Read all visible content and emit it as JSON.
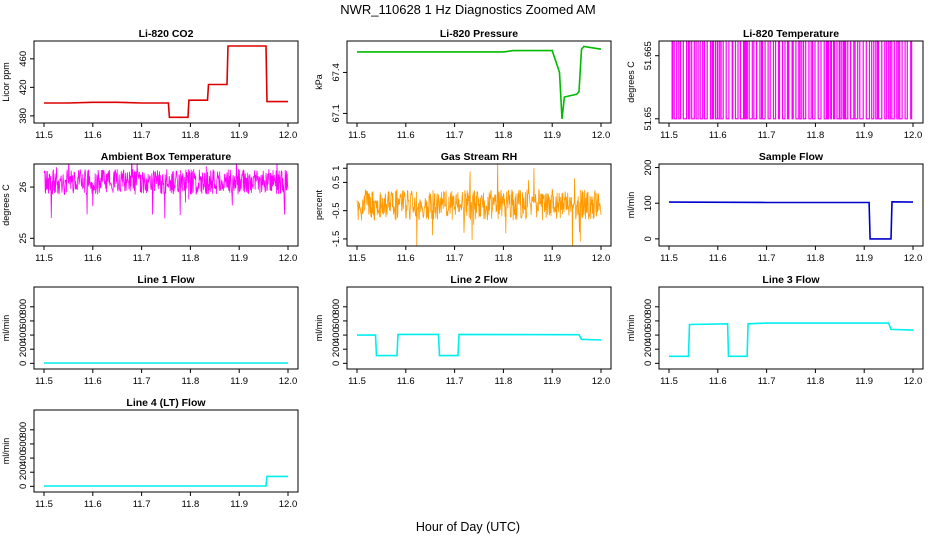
{
  "figure": {
    "title": "NWR_110628  1 Hz Diagnostics Zoomed AM",
    "xlabel": "Hour of Day (UTC)"
  },
  "chart_data": [
    {
      "type": "line",
      "title": "Li-820 CO2",
      "ylabel": "Licor ppm",
      "xlim": [
        11.5,
        12.0
      ],
      "ylim": [
        370,
        485
      ],
      "xticks": [
        "11.5",
        "11.6",
        "11.7",
        "11.8",
        "11.9",
        "12.0"
      ],
      "yticks": [
        380,
        420,
        460
      ],
      "color": "#dd0000",
      "series": [
        {
          "x": [
            11.5,
            11.55,
            11.6,
            11.65,
            11.7,
            11.755,
            11.757,
            11.795,
            11.797,
            11.835,
            11.837,
            11.875,
            11.877,
            11.955,
            11.957,
            12.0
          ],
          "y": [
            398,
            398,
            399,
            399,
            398,
            398,
            378,
            378,
            402,
            402,
            424,
            424,
            478,
            478,
            400,
            400
          ]
        }
      ]
    },
    {
      "type": "line",
      "title": "Li-820 Pressure",
      "ylabel": "kPa",
      "xlim": [
        11.5,
        12.0
      ],
      "ylim": [
        67.03,
        67.63
      ],
      "xticks": [
        "11.5",
        "11.6",
        "11.7",
        "11.8",
        "11.9",
        "12.0"
      ],
      "yticks": [
        67.1,
        67.4
      ],
      "color": "#00bb00",
      "series": [
        {
          "x": [
            11.5,
            11.6,
            11.7,
            11.8,
            11.82,
            11.9,
            11.915,
            11.92,
            11.925,
            11.95,
            11.955,
            11.96,
            11.965,
            12.0
          ],
          "y": [
            67.55,
            67.55,
            67.55,
            67.55,
            67.56,
            67.56,
            67.4,
            67.06,
            67.22,
            67.24,
            67.26,
            67.57,
            67.59,
            67.57
          ]
        }
      ]
    },
    {
      "type": "line",
      "title": "Li-820 Temperature",
      "ylabel": "degrees C",
      "xlim": [
        11.5,
        12.0
      ],
      "ylim": [
        51.649,
        51.6685
      ],
      "xticks": [
        "11.5",
        "11.6",
        "11.7",
        "11.8",
        "11.9",
        "12.0"
      ],
      "yticks": [
        51.65,
        51.665
      ],
      "color": "#ff00ff",
      "pattern": "binary-toggle",
      "low": 51.65,
      "high": 51.67
    },
    {
      "type": "line",
      "title": "Ambient Box Temperature",
      "ylabel": "degrees C",
      "xlim": [
        11.5,
        12.0
      ],
      "ylim": [
        24.85,
        26.45
      ],
      "xticks": [
        "11.5",
        "11.6",
        "11.7",
        "11.8",
        "11.9",
        "12.0"
      ],
      "yticks": [
        25.0,
        26.0
      ],
      "color": "#ff00ff",
      "pattern": "noise",
      "mean": 26.1,
      "spread": 0.25
    },
    {
      "type": "line",
      "title": "Gas Stream RH",
      "ylabel": "percent",
      "xlim": [
        11.5,
        12.0
      ],
      "ylim": [
        -1.75,
        1.15
      ],
      "xticks": [
        "11.5",
        "11.6",
        "11.7",
        "11.8",
        "11.9",
        "12.0"
      ],
      "yticks": [
        -1.5,
        -0.5,
        0.5,
        1.0
      ],
      "color": "#ff9900",
      "pattern": "noise",
      "mean": -0.3,
      "spread": 0.55
    },
    {
      "type": "line",
      "title": "Sample Flow",
      "ylabel": "ml/min",
      "xlim": [
        11.5,
        12.0
      ],
      "ylim": [
        -20,
        210
      ],
      "xticks": [
        "11.5",
        "11.6",
        "11.7",
        "11.8",
        "11.9",
        "12.0"
      ],
      "yticks": [
        0,
        100,
        200
      ],
      "color": "#0000cc",
      "series": [
        {
          "x": [
            11.5,
            11.7,
            11.91,
            11.912,
            11.955,
            11.957,
            12.0
          ],
          "y": [
            103,
            102,
            102,
            0,
            0,
            104,
            103
          ]
        }
      ]
    },
    {
      "type": "line",
      "title": "Line 1 Flow",
      "ylabel": "ml/min",
      "xlim": [
        11.5,
        12.0
      ],
      "ylim": [
        -80,
        1080
      ],
      "xticks": [
        "11.5",
        "11.6",
        "11.7",
        "11.8",
        "11.9",
        "12.0"
      ],
      "yticks": [
        0,
        200,
        400,
        600,
        800
      ],
      "color": "#00eeee",
      "series": [
        {
          "x": [
            11.5,
            12.0
          ],
          "y": [
            5,
            5
          ]
        }
      ]
    },
    {
      "type": "line",
      "title": "Line 2 Flow",
      "ylabel": "ml/min",
      "xlim": [
        11.5,
        12.0
      ],
      "ylim": [
        -80,
        1080
      ],
      "xticks": [
        "11.5",
        "11.6",
        "11.7",
        "11.8",
        "11.9",
        "12.0"
      ],
      "yticks": [
        0,
        200,
        400,
        600,
        800
      ],
      "color": "#00eeee",
      "series": [
        {
          "x": [
            11.5,
            11.538,
            11.54,
            11.582,
            11.584,
            11.667,
            11.669,
            11.707,
            11.709,
            11.955,
            11.96,
            12.0
          ],
          "y": [
            400,
            400,
            110,
            110,
            410,
            410,
            110,
            110,
            410,
            405,
            340,
            330
          ]
        }
      ]
    },
    {
      "type": "line",
      "title": "Line 3 Flow",
      "ylabel": "ml/min",
      "xlim": [
        11.5,
        12.0
      ],
      "ylim": [
        -80,
        1080
      ],
      "xticks": [
        "11.5",
        "11.6",
        "11.7",
        "11.8",
        "11.9",
        "12.0"
      ],
      "yticks": [
        0,
        200,
        400,
        600,
        800
      ],
      "color": "#00eeee",
      "series": [
        {
          "x": [
            11.5,
            11.54,
            11.542,
            11.62,
            11.622,
            11.66,
            11.662,
            11.7,
            11.95,
            11.955,
            12.0
          ],
          "y": [
            100,
            100,
            550,
            560,
            100,
            100,
            560,
            570,
            570,
            480,
            470
          ]
        }
      ]
    },
    {
      "type": "line",
      "title": "Line 4 (LT) Flow",
      "ylabel": "ml/min",
      "xlim": [
        11.5,
        12.0
      ],
      "ylim": [
        -80,
        1080
      ],
      "xticks": [
        "11.5",
        "11.6",
        "11.7",
        "11.8",
        "11.9",
        "12.0"
      ],
      "yticks": [
        0,
        200,
        400,
        600,
        800
      ],
      "color": "#00eeee",
      "series": [
        {
          "x": [
            11.5,
            11.955,
            11.957,
            12.0
          ],
          "y": [
            5,
            5,
            140,
            140
          ]
        }
      ]
    }
  ]
}
